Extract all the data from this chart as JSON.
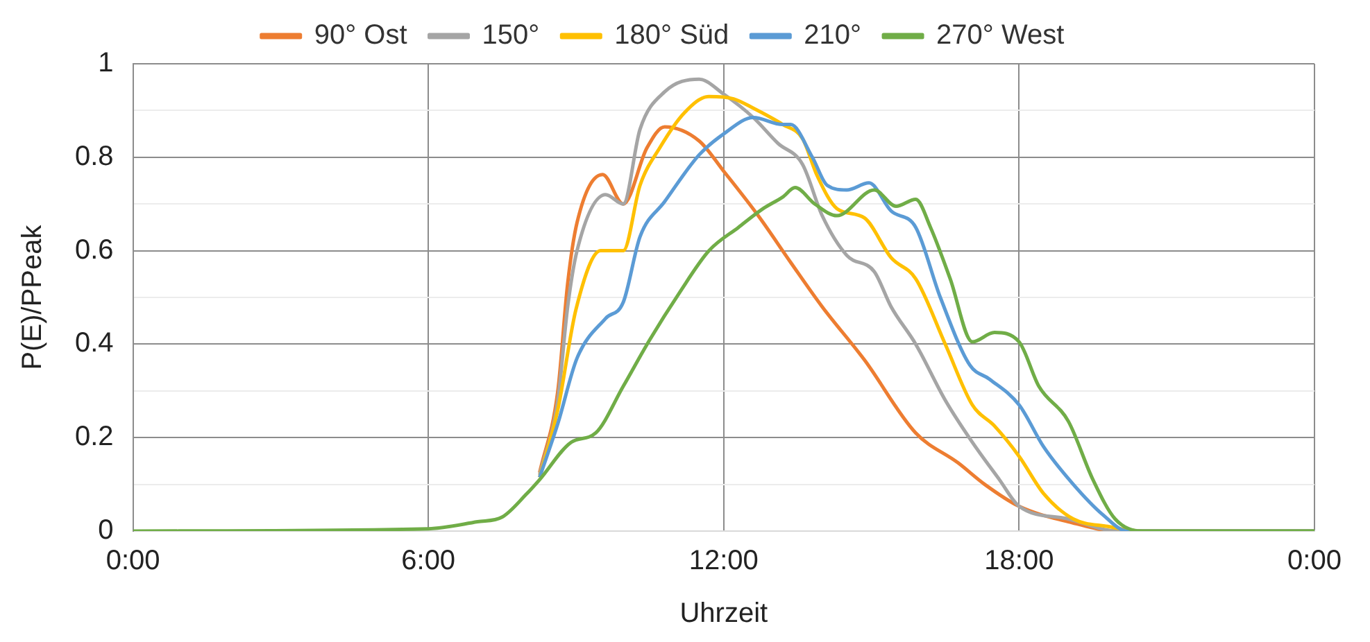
{
  "chart_data": {
    "type": "line",
    "xlabel": "Uhrzeit",
    "ylabel": "P(E)/PPeak",
    "xlim": [
      0,
      24
    ],
    "ylim": [
      0,
      1
    ],
    "xticks": [
      {
        "value": 0,
        "label": "0:00"
      },
      {
        "value": 6,
        "label": "6:00"
      },
      {
        "value": 12,
        "label": "12:00"
      },
      {
        "value": 18,
        "label": "18:00"
      },
      {
        "value": 24,
        "label": "0:00"
      }
    ],
    "yticks": [
      0,
      {
        "value": 0.1,
        "label": null
      },
      0.2,
      {
        "value": 0.3,
        "label": null
      },
      0.4,
      {
        "value": 0.5,
        "label": null
      },
      0.6,
      {
        "value": 0.7,
        "label": null
      },
      0.8,
      {
        "value": 0.9,
        "label": null
      },
      1
    ],
    "grid": true,
    "legend": "top",
    "marker": "none",
    "line_style": "solid",
    "series": [
      {
        "name": "90° Ost",
        "color": "#ed7d31",
        "x": [
          8.26,
          8.63,
          8.83,
          9.02,
          9.54,
          9.96,
          10.44,
          10.8,
          11.5,
          12,
          12.7,
          13.36,
          14,
          14.86,
          15.9,
          16.76,
          17.3,
          18,
          19,
          20,
          24
        ],
        "values": [
          0.125,
          0.3,
          0.53,
          0.66,
          0.763,
          0.7,
          0.82,
          0.865,
          0.835,
          0.77,
          0.675,
          0.575,
          0.48,
          0.366,
          0.21,
          0.146,
          0.1,
          0.053,
          0.02,
          0,
          0
        ]
      },
      {
        "name": "150°",
        "color": "#a5a5a5",
        "x": [
          8.26,
          8.63,
          8.83,
          9.02,
          9.6,
          9.96,
          10.3,
          10.8,
          11.5,
          12,
          12.6,
          13.1,
          13.6,
          14,
          14.5,
          15.06,
          15.4,
          15.9,
          16.5,
          17.05,
          17.6,
          18,
          19,
          20,
          24
        ],
        "values": [
          0.12,
          0.28,
          0.48,
          0.6,
          0.72,
          0.7,
          0.86,
          0.94,
          0.967,
          0.935,
          0.885,
          0.83,
          0.785,
          0.675,
          0.59,
          0.555,
          0.48,
          0.4,
          0.28,
          0.19,
          0.11,
          0.053,
          0.026,
          0,
          0
        ]
      },
      {
        "name": "180° Süd",
        "color": "#ffc000",
        "x": [
          8.26,
          8.63,
          9,
          9.5,
          9.96,
          10.3,
          10.7,
          11.2,
          11.7,
          12.2,
          12.6,
          13.2,
          13.6,
          13.9,
          14.3,
          14.86,
          15.4,
          15.9,
          16.5,
          17.05,
          17.5,
          18,
          18.5,
          19.1,
          19.8,
          20.5,
          24
        ],
        "values": [
          0.115,
          0.26,
          0.475,
          0.6,
          0.6,
          0.74,
          0.82,
          0.895,
          0.93,
          0.925,
          0.905,
          0.87,
          0.84,
          0.76,
          0.69,
          0.67,
          0.585,
          0.54,
          0.4,
          0.27,
          0.225,
          0.16,
          0.08,
          0.026,
          0.01,
          0,
          0
        ]
      },
      {
        "name": "210°",
        "color": "#5b9bd5",
        "x": [
          8.26,
          8.63,
          9.02,
          9.6,
          9.96,
          10.3,
          10.8,
          11.5,
          12,
          12.6,
          13.2,
          13.36,
          13.8,
          14.1,
          14.5,
          14.95,
          15.4,
          15.9,
          16.4,
          17,
          17.4,
          18,
          18.5,
          19.1,
          19.7,
          20.2,
          24
        ],
        "values": [
          0.115,
          0.23,
          0.37,
          0.455,
          0.49,
          0.63,
          0.705,
          0.805,
          0.85,
          0.885,
          0.87,
          0.87,
          0.8,
          0.74,
          0.73,
          0.745,
          0.685,
          0.65,
          0.5,
          0.355,
          0.325,
          0.27,
          0.18,
          0.1,
          0.035,
          0,
          0
        ]
      },
      {
        "name": "270° West",
        "color": "#70ad47",
        "x": [
          0,
          6,
          7,
          7.5,
          8,
          8.26,
          8.9,
          9.4,
          9.96,
          10.5,
          11.1,
          11.7,
          12.3,
          12.8,
          13.2,
          13.45,
          13.85,
          14.3,
          15.06,
          15.5,
          15.9,
          16.2,
          16.6,
          17.05,
          17.5,
          18,
          18.4,
          19,
          19.5,
          19.95,
          20.5,
          24
        ],
        "values": [
          0,
          0.005,
          0.02,
          0.03,
          0.08,
          0.11,
          0.19,
          0.21,
          0.31,
          0.41,
          0.51,
          0.6,
          0.65,
          0.69,
          0.715,
          0.735,
          0.7,
          0.675,
          0.73,
          0.695,
          0.71,
          0.65,
          0.54,
          0.405,
          0.425,
          0.405,
          0.31,
          0.235,
          0.11,
          0.026,
          0,
          0
        ]
      }
    ]
  }
}
